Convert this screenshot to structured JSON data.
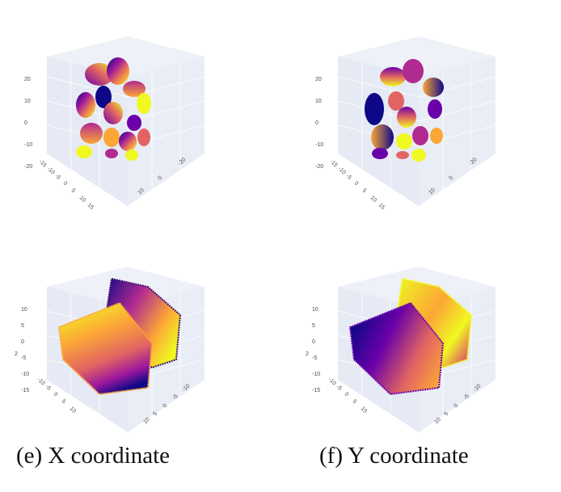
{
  "panels": [
    {
      "id": "top-left",
      "z_ticks": [
        "20",
        "10",
        "0",
        "-10",
        "-20"
      ],
      "left_ticks": [
        "-15",
        "-10",
        "-5",
        "0",
        "5",
        "10",
        "15"
      ],
      "right_ticks": [
        "-20",
        "0",
        "10"
      ],
      "shape": "blobs"
    },
    {
      "id": "top-right",
      "z_ticks": [
        "20",
        "10",
        "0",
        "-10",
        "-20"
      ],
      "left_ticks": [
        "-15",
        "-10",
        "-5",
        "0",
        "5",
        "10",
        "15"
      ],
      "right_ticks": [
        "-20",
        "0",
        "10"
      ],
      "shape": "blobs"
    },
    {
      "id": "bottom-left",
      "z_ticks": [
        "10",
        "5",
        "0",
        "-5",
        "-10",
        "-15"
      ],
      "left_ticks": [
        "-10",
        "-5",
        "0",
        "5",
        "10"
      ],
      "right_ticks": [
        "-10",
        "-5",
        "0",
        "5",
        "10"
      ],
      "side_label": "2",
      "shape": "slabs"
    },
    {
      "id": "bottom-right",
      "z_ticks": [
        "10",
        "5",
        "0",
        "-5",
        "-10",
        "-15"
      ],
      "left_ticks": [
        "-10",
        "-5",
        "0",
        "5",
        "10"
      ],
      "right_ticks": [
        "-10",
        "-5",
        "0",
        "5",
        "10"
      ],
      "side_label": "2",
      "shape": "slabs"
    }
  ],
  "captions": {
    "left": "(e) X coordinate",
    "right": "(f) Y coordinate"
  },
  "colormap": [
    "#0d0887",
    "#6a00a8",
    "#b12a90",
    "#e16462",
    "#fca636",
    "#f0f921"
  ]
}
